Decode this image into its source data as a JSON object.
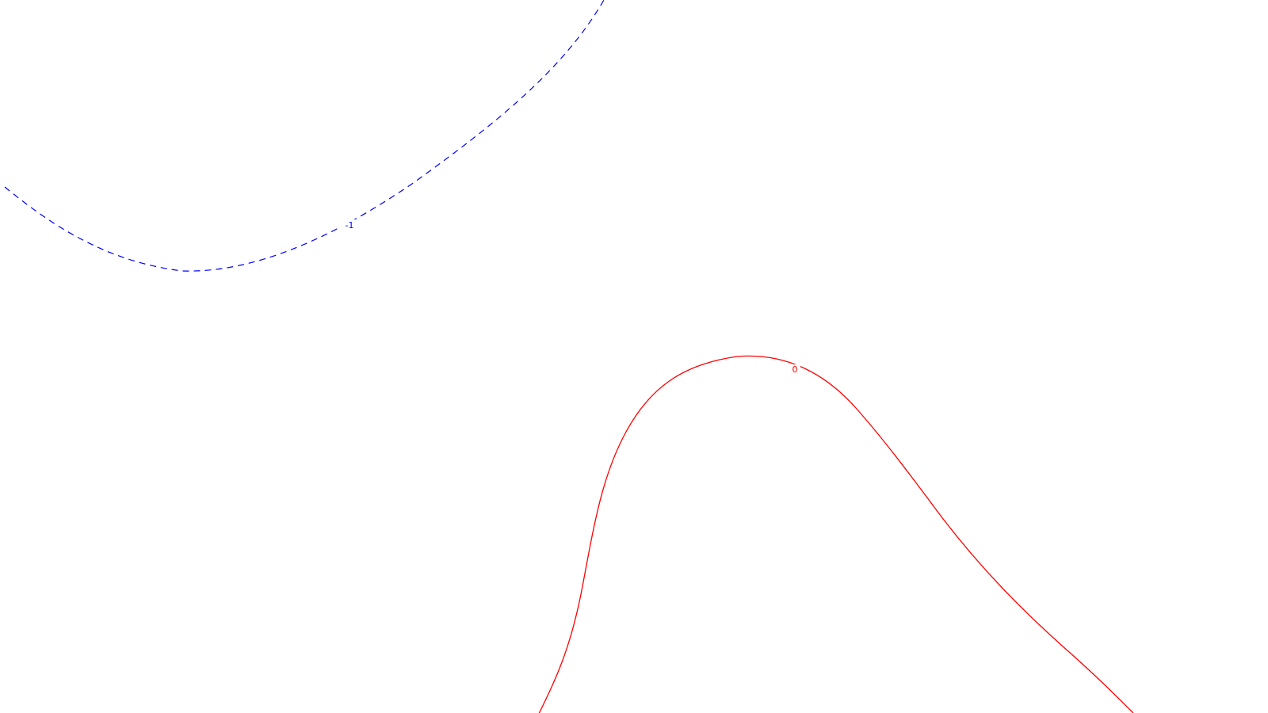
{
  "colors": {
    "background": "#ffffff",
    "contour_negative": "#0000ff",
    "contour_zero": "#ff0000"
  },
  "contours": [
    {
      "level_label": "-1",
      "style": "dashed",
      "color": "#0000ff"
    },
    {
      "level_label": "0",
      "style": "solid",
      "color": "#ff0000"
    }
  ]
}
